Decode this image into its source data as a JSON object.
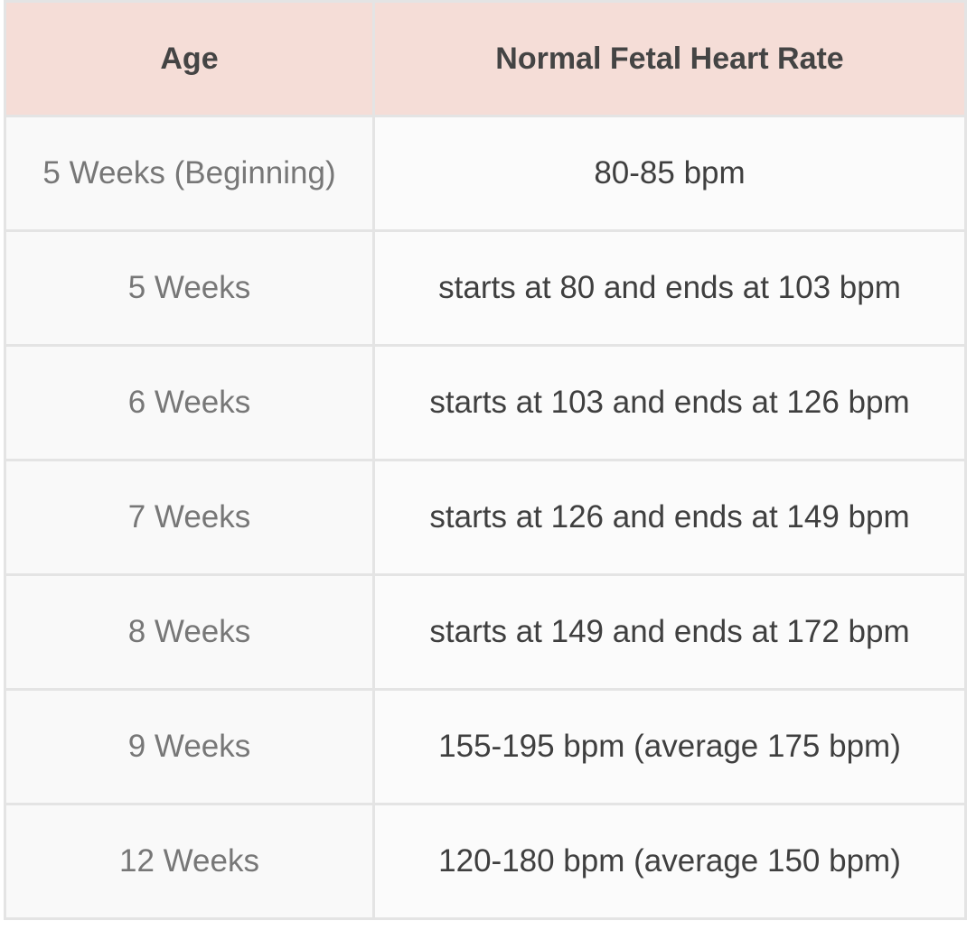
{
  "table": {
    "header": [
      "Age",
      "Normal Fetal Heart Rate"
    ],
    "rows": [
      [
        "5 Weeks (Beginning)",
        "80-85 bpm"
      ],
      [
        "5 Weeks",
        "starts at 80 and ends at 103 bpm"
      ],
      [
        "6 Weeks",
        "starts at 103 and ends at 126 bpm"
      ],
      [
        "7 Weeks",
        "starts at 126 and ends at 149 bpm"
      ],
      [
        "8 Weeks",
        "starts at 149 and ends at 172 bpm"
      ],
      [
        "9 Weeks",
        "155-195 bpm (average 175 bpm)"
      ],
      [
        "12 Weeks",
        "120-180 bpm (average 150 bpm)"
      ]
    ]
  }
}
